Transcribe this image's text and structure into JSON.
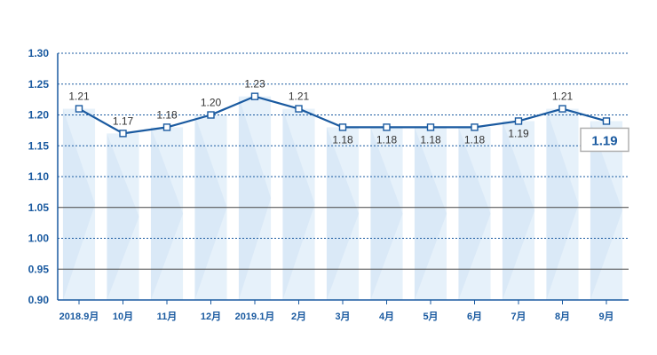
{
  "chart_data": {
    "type": "line",
    "categories": [
      "2018.9月",
      "10月",
      "11月",
      "12月",
      "2019.1月",
      "2月",
      "3月",
      "4月",
      "5月",
      "6月",
      "7月",
      "8月",
      "9月"
    ],
    "values": [
      1.21,
      1.17,
      1.18,
      1.2,
      1.23,
      1.21,
      1.18,
      1.18,
      1.18,
      1.18,
      1.19,
      1.21,
      1.19
    ],
    "data_labels": [
      "1.21",
      "1.17",
      "1.18",
      "1.20",
      "1.23",
      "1.21",
      "1.18",
      "1.18",
      "1.18",
      "1.18",
      "1.19",
      "1.21",
      "1.19"
    ],
    "y_ticks": [
      "0.90",
      "0.95",
      "1.00",
      "1.05",
      "1.10",
      "1.15",
      "1.20",
      "1.25",
      "1.30"
    ],
    "ylim": [
      0.9,
      1.3
    ],
    "title": "",
    "xlabel": "",
    "ylabel": "",
    "grid": "horizontal",
    "legend": "none",
    "highlight_last_value": "1.19",
    "colors": {
      "line": "#1a5aa0",
      "axis": "#1a5aa0",
      "tick_text": "#1a5aa0",
      "dotted_grid": "#1a5aa0",
      "solid_grid": "#444444",
      "band": "#d6e8f6",
      "marker_fill": "#ffffff",
      "callout_border": "#b0b0b0"
    }
  }
}
